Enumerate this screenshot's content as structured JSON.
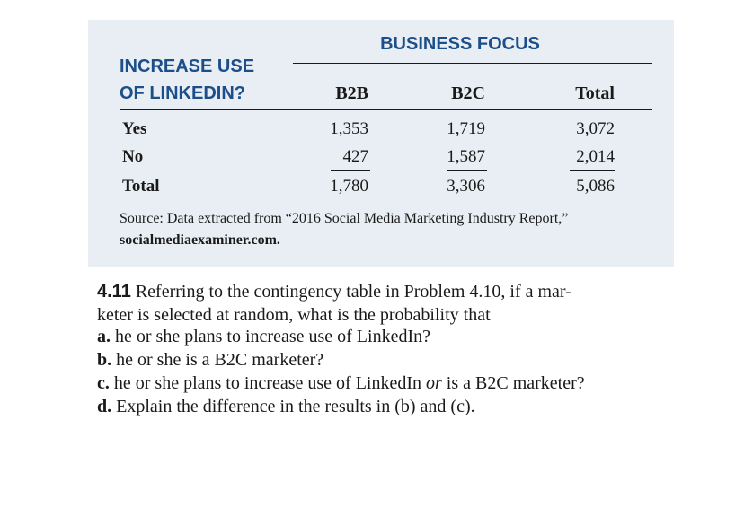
{
  "table": {
    "group_header": "BUSINESS FOCUS",
    "row_header_line1": "INCREASE USE",
    "row_header_line2": "OF LINKEDIN?",
    "columns": [
      "B2B",
      "B2C",
      "Total"
    ],
    "rows": [
      {
        "label": "Yes",
        "values": [
          "1,353",
          "1,719",
          "3,072"
        ]
      },
      {
        "label": "No",
        "values": [
          "427",
          "1,587",
          "2,014"
        ]
      },
      {
        "label": "Total",
        "values": [
          "1,780",
          "3,306",
          "5,086"
        ]
      }
    ]
  },
  "source": {
    "text": "Source: Data extracted from “2016 Social Media Marketing Industry Report,” ",
    "site": "socialmediaexaminer.com."
  },
  "problem": {
    "number": "4.11",
    "intro_line1": " Referring to the contingency table in Problem 4.10, if a mar-",
    "intro_line2": "keter is selected at random, what is the probability that",
    "items": [
      {
        "label": "a.",
        "text": " he or she plans to increase use of LinkedIn?"
      },
      {
        "label": "b.",
        "text": " he or she is a B2C marketer?"
      },
      {
        "label": "c.",
        "text_before": " he or she plans to increase use of LinkedIn ",
        "text_em": "or",
        "text_after": " is a B2C marketer?"
      },
      {
        "label": "d.",
        "text": " Explain the difference in the results in (b) and (c)."
      }
    ]
  }
}
